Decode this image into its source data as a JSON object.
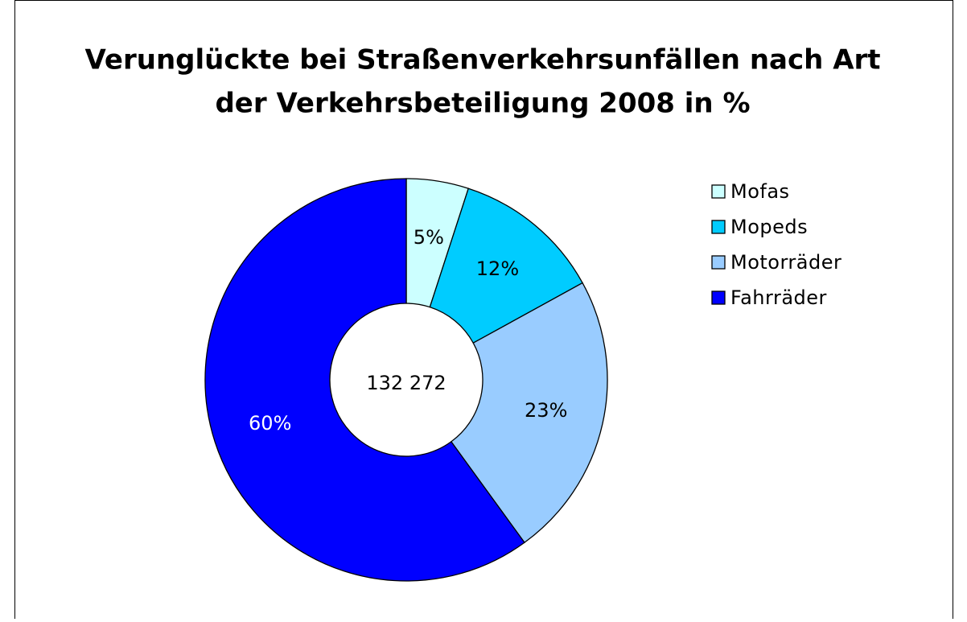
{
  "chart_data": {
    "type": "donut",
    "title": [
      "Verunglückte bei Straßenverkehrsunfällen nach Art",
      "der Verkehrsbeteiligung 2008 in %"
    ],
    "categories": [
      "Mofas",
      "Mopeds",
      "Motorräder",
      "Fahrräder"
    ],
    "values": [
      5,
      12,
      23,
      60
    ],
    "value_labels": [
      "5%",
      "12%",
      "23%",
      "60%"
    ],
    "colors": [
      "#ccffff",
      "#00ccff",
      "#99ccff",
      "#0000ff"
    ],
    "center_label": "132 272",
    "legend": "right"
  }
}
